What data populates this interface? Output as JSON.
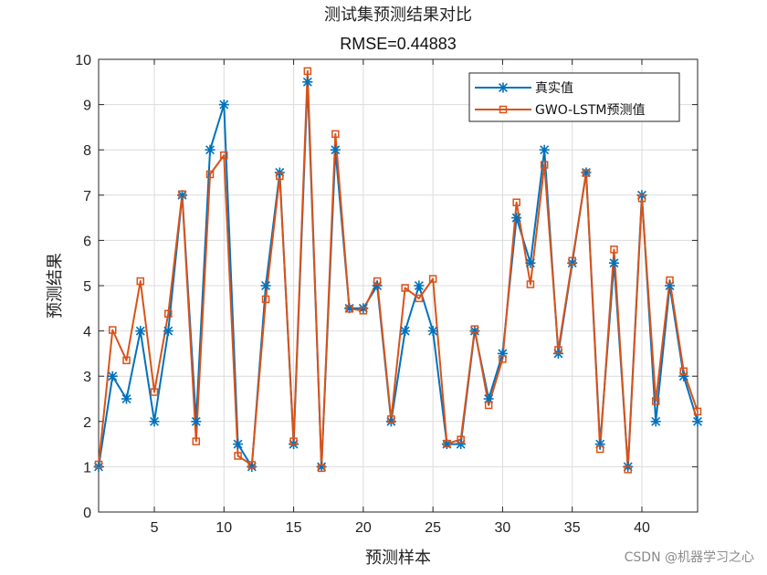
{
  "chart_data": {
    "type": "line",
    "title": "测试集预测结果对比",
    "subtitle": "RMSE=0.44883",
    "xlabel": "预测样本",
    "ylabel": "预测结果",
    "xlim": [
      1,
      44
    ],
    "ylim": [
      0,
      10
    ],
    "xticks": [
      5,
      10,
      15,
      20,
      25,
      30,
      35,
      40
    ],
    "yticks": [
      0,
      1,
      2,
      3,
      4,
      5,
      6,
      7,
      8,
      9,
      10
    ],
    "grid": true,
    "legend_position": "top-right",
    "x": [
      1,
      2,
      3,
      4,
      5,
      6,
      7,
      8,
      9,
      10,
      11,
      12,
      13,
      14,
      15,
      16,
      17,
      18,
      19,
      20,
      21,
      22,
      23,
      24,
      25,
      26,
      27,
      28,
      29,
      30,
      31,
      32,
      33,
      34,
      35,
      36,
      37,
      38,
      39,
      40,
      41,
      42,
      43,
      44
    ],
    "series": [
      {
        "name": "真实值",
        "color": "#0072BD",
        "marker": "asterisk",
        "values": [
          1,
          3,
          2.5,
          4,
          2,
          4,
          7,
          2,
          8,
          9,
          1.5,
          1,
          5,
          7.5,
          1.5,
          9.5,
          1,
          8,
          4.5,
          4.5,
          5,
          2,
          4,
          5,
          4,
          1.5,
          1.5,
          4,
          2.5,
          3.5,
          6.5,
          5.5,
          8,
          3.5,
          5.5,
          7.5,
          1.5,
          5.5,
          1,
          7,
          2,
          5,
          3,
          2
        ]
      },
      {
        "name": "GWO-LSTM预测值",
        "color": "#D95319",
        "marker": "square",
        "values": [
          1.05,
          4.02,
          3.35,
          5.1,
          2.65,
          4.38,
          7.02,
          1.56,
          7.46,
          7.88,
          1.24,
          1.04,
          4.7,
          7.42,
          1.56,
          9.74,
          0.97,
          8.35,
          4.49,
          4.45,
          5.1,
          2.05,
          4.95,
          4.72,
          5.15,
          1.51,
          1.6,
          4.04,
          2.36,
          3.38,
          6.84,
          5.03,
          7.67,
          3.58,
          5.55,
          7.49,
          1.39,
          5.8,
          0.94,
          6.93,
          2.45,
          5.12,
          3.11,
          2.22
        ]
      }
    ]
  },
  "watermark": "CSDN @机器学习之心"
}
